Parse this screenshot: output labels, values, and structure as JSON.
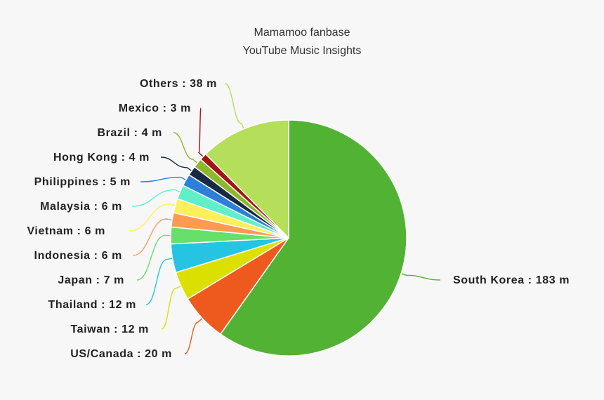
{
  "chart_data": {
    "type": "pie",
    "title": "Mamamoo fanbase",
    "subtitle": "YouTube Music Insights",
    "slices": [
      {
        "label": "South Korea",
        "value": 183,
        "display": "South Korea : 183 m",
        "color": "#52b234",
        "leader": "#52b234"
      },
      {
        "label": "US/Canada",
        "value": 20,
        "display": "US/Canada : 20 m",
        "color": "#ee5a1e",
        "leader": "#ee5a1e"
      },
      {
        "label": "Taiwan",
        "value": 12,
        "display": "Taiwan : 12 m",
        "color": "#dbe000",
        "leader": "#dbe000"
      },
      {
        "label": "Thailand",
        "value": 12,
        "display": "Thailand : 12 m",
        "color": "#24c4e2",
        "leader": "#24c4e2"
      },
      {
        "label": "Japan",
        "value": 7,
        "display": "Japan : 7 m",
        "color": "#66e06a",
        "leader": "#66e06a"
      },
      {
        "label": "Indonesia",
        "value": 6,
        "display": "Indonesia : 6 m",
        "color": "#ff9a55",
        "leader": "#ff9a55"
      },
      {
        "label": "Vietnam",
        "value": 6,
        "display": "Vietnam : 6 m",
        "color": "#ffef5a",
        "leader": "#ffef5a"
      },
      {
        "label": "Malaysia",
        "value": 6,
        "display": "Malaysia : 6 m",
        "color": "#5ff0c8",
        "leader": "#5ff0c8"
      },
      {
        "label": "Philippines",
        "value": 5,
        "display": "Philippines : 5 m",
        "color": "#2e7fd8",
        "leader": "#2e7fd8"
      },
      {
        "label": "Hong Kong",
        "value": 4,
        "display": "Hong Kong : 4 m",
        "color": "#172a44",
        "leader": "#172a44"
      },
      {
        "label": "Brazil",
        "value": 4,
        "display": "Brazil : 4 m",
        "color": "#8cb82a",
        "leader": "#8cb82a"
      },
      {
        "label": "Mexico",
        "value": 3,
        "display": "Mexico : 3 m",
        "color": "#a31515",
        "leader": "#a31515"
      },
      {
        "label": "Others",
        "value": 38,
        "display": "Others : 38 m",
        "color": "#b5de5a",
        "leader": "#b5de5a"
      }
    ],
    "start_angle": "12 o'clock",
    "direction": "clockwise",
    "legend": "none"
  }
}
